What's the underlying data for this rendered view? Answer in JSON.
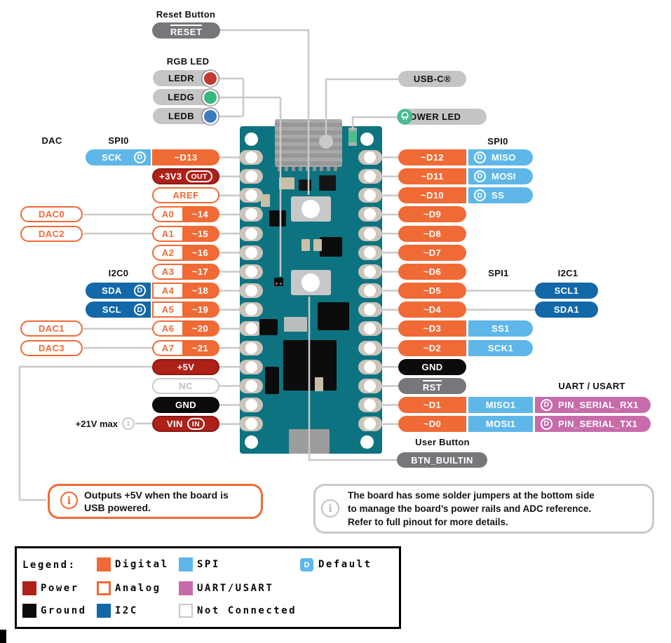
{
  "d_badge": "D",
  "colors": {
    "digital": "#F06A35",
    "power": "#AE2119",
    "ground": "#0B0B0B",
    "spi": "#5EB7E8",
    "i2c": "#1268A9",
    "uart": "#C76BAA",
    "analog_outline": "#F06A35",
    "nc_outline": "#C8C8C8",
    "board": "#0D7380",
    "leader_line": "#C9C9C9",
    "gray_pill": "#76777A",
    "light_pill": "#C5C5C7"
  },
  "callouts": {
    "reset_header": "Reset Button",
    "reset_label": "RESET",
    "rgb_header": "RGB LED",
    "leds": [
      {
        "label": "LEDR",
        "color": "#C23A30"
      },
      {
        "label": "LEDG",
        "color": "#36B77E"
      },
      {
        "label": "LEDB",
        "color": "#3B7BBE"
      }
    ],
    "usb_label": "USB-C®",
    "power_led_label": "POWER LED",
    "user_button_header": "User Button",
    "user_button_label": "BTN_BUILTIN",
    "vin_note": "+21V max"
  },
  "group_headers": {
    "dac": "DAC",
    "spi0_left": "SPI0",
    "i2c0": "I2C0",
    "spi0_right": "SPI0",
    "spi1": "SPI1",
    "i2c1": "I2C1",
    "uart": "UART / USART"
  },
  "pins": {
    "left": [
      {
        "badge": {
          "label": "SCK",
          "type": "spi",
          "d": true
        },
        "main": {
          "type": "digital",
          "label": "~D13"
        }
      },
      {
        "main": {
          "type": "power",
          "label": "+3V3",
          "tag": "OUT"
        }
      },
      {
        "main": {
          "type": "analog_plain",
          "label": "AREF"
        }
      },
      {
        "callout": {
          "label": "DAC0"
        },
        "main": {
          "type": "analog",
          "a": "A0",
          "label": "~14"
        }
      },
      {
        "callout": {
          "label": "DAC2"
        },
        "main": {
          "type": "analog",
          "a": "A1",
          "label": "~15"
        }
      },
      {
        "main": {
          "type": "analog",
          "a": "A2",
          "label": "~16"
        }
      },
      {
        "main": {
          "type": "analog",
          "a": "A3",
          "label": "~17"
        }
      },
      {
        "badge": {
          "label": "SDA",
          "type": "i2c",
          "d": true
        },
        "main": {
          "type": "analog",
          "a": "A4",
          "label": "~18"
        }
      },
      {
        "badge": {
          "label": "SCL",
          "type": "i2c",
          "d": true
        },
        "main": {
          "type": "analog",
          "a": "A5",
          "label": "~19"
        }
      },
      {
        "callout": {
          "label": "DAC1"
        },
        "main": {
          "type": "analog",
          "a": "A6",
          "label": "~20"
        }
      },
      {
        "callout": {
          "label": "DAC3"
        },
        "main": {
          "type": "analog",
          "a": "A7",
          "label": "~21"
        }
      },
      {
        "main": {
          "type": "power",
          "label": "+5V"
        }
      },
      {
        "main": {
          "type": "nc",
          "label": "NC"
        }
      },
      {
        "main": {
          "type": "ground",
          "label": "GND"
        }
      },
      {
        "main": {
          "type": "power",
          "label": "VIN",
          "tag": "IN"
        }
      }
    ],
    "right": [
      {
        "main": {
          "type": "digital",
          "label": "~D12"
        },
        "badge": {
          "label": "MISO",
          "type": "spi",
          "d": true
        }
      },
      {
        "main": {
          "type": "digital",
          "label": "~D11"
        },
        "badge": {
          "label": "MOSI",
          "type": "spi",
          "d": true
        }
      },
      {
        "main": {
          "type": "digital",
          "label": "~D10"
        },
        "badge": {
          "label": "SS",
          "type": "spi",
          "d": true
        }
      },
      {
        "main": {
          "type": "digital",
          "label": "~D9"
        }
      },
      {
        "main": {
          "type": "digital",
          "label": "~D8"
        }
      },
      {
        "main": {
          "type": "digital",
          "label": "~D7"
        }
      },
      {
        "main": {
          "type": "digital",
          "label": "~D6"
        }
      },
      {
        "main": {
          "type": "digital",
          "label": "~D5"
        },
        "far": {
          "label": "SCL1",
          "type": "i2c"
        }
      },
      {
        "main": {
          "type": "digital",
          "label": "~D4"
        },
        "far": {
          "label": "SDA1",
          "type": "i2c"
        }
      },
      {
        "main": {
          "type": "digital",
          "label": "~D3"
        },
        "badge": {
          "label": "SS1",
          "type": "spi"
        }
      },
      {
        "main": {
          "type": "digital",
          "label": "~D2"
        },
        "badge": {
          "label": "SCK1",
          "type": "spi"
        }
      },
      {
        "main": {
          "type": "ground",
          "label": "GND"
        }
      },
      {
        "main": {
          "type": "gray",
          "label": "RST",
          "overline": true
        }
      },
      {
        "main": {
          "type": "digital",
          "label": "~D1"
        },
        "badge": {
          "label": "MISO1",
          "type": "spi"
        },
        "far": {
          "label": "PIN_SERIAL_RX1",
          "type": "uart",
          "d": true
        }
      },
      {
        "main": {
          "type": "digital",
          "label": "~D0"
        },
        "badge": {
          "label": "MOSI1",
          "type": "spi"
        },
        "far": {
          "label": "PIN_SERIAL_TX1",
          "type": "uart",
          "d": true
        }
      }
    ]
  },
  "info_boxes": {
    "power_note": {
      "lines": [
        "Outputs +5V when the board is",
        "USB powered."
      ]
    },
    "jumper_note": {
      "lines": [
        "The board has some solder jumpers at the bottom side",
        "to manage the board’s power rails and ADC reference.",
        "Refer to full pinout for more details."
      ]
    }
  },
  "legend": {
    "title": "Legend:",
    "items": [
      {
        "label": "Digital",
        "swatch": "digital"
      },
      {
        "label": "SPI",
        "swatch": "spi"
      },
      {
        "label": "Default",
        "swatch": "default"
      },
      {
        "label": "Power",
        "swatch": "power"
      },
      {
        "label": "Analog",
        "swatch": "analog"
      },
      {
        "label": "UART/USART",
        "swatch": "uart"
      },
      {
        "label": "Ground",
        "swatch": "ground"
      },
      {
        "label": "I2C",
        "swatch": "i2c"
      },
      {
        "label": "Not Connected",
        "swatch": "nc"
      }
    ]
  }
}
